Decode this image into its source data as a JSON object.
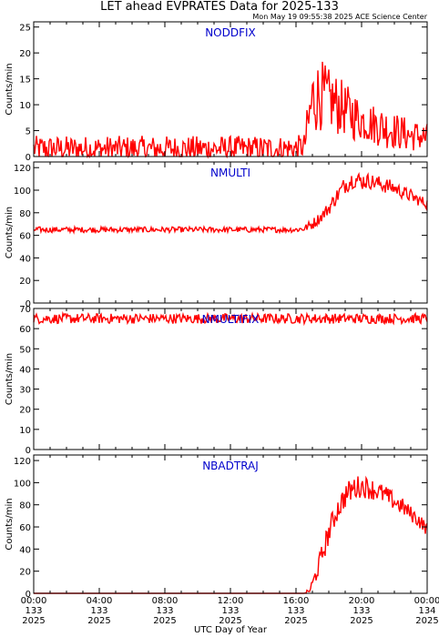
{
  "header": {
    "title": "LET ahead EVPRATES Data for 2025-133",
    "timestamp": "Mon May 19 09:55:38 2025 ACE Science Center"
  },
  "xaxis": {
    "label": "UTC Day of Year",
    "range_hours": [
      0,
      24
    ],
    "ticks": [
      {
        "hour": 0,
        "time": "00:00",
        "doy": "133",
        "year": "2025"
      },
      {
        "hour": 4,
        "time": "04:00",
        "doy": "133",
        "year": "2025"
      },
      {
        "hour": 8,
        "time": "08:00",
        "doy": "133",
        "year": "2025"
      },
      {
        "hour": 12,
        "time": "12:00",
        "doy": "133",
        "year": "2025"
      },
      {
        "hour": 16,
        "time": "16:00",
        "doy": "133",
        "year": "2025"
      },
      {
        "hour": 20,
        "time": "20:00",
        "doy": "133",
        "year": "2025"
      },
      {
        "hour": 24,
        "time": "00:00",
        "doy": "134",
        "year": "2025"
      }
    ]
  },
  "colors": {
    "series": "#ff0000",
    "panel_label": "#0000cc",
    "axes": "#000000"
  },
  "chart_data": [
    {
      "type": "line",
      "name": "NODDFIX",
      "ylabel": "Counts/min",
      "ylim": [
        0,
        26
      ],
      "yticks": [
        0,
        5,
        10,
        15,
        20,
        25
      ],
      "x": [
        0,
        1,
        2,
        3,
        4,
        5,
        6,
        7,
        8,
        9,
        10,
        11,
        12,
        13,
        14,
        15,
        16,
        16.5,
        16.8,
        17,
        17.5,
        18,
        18.5,
        19,
        19.5,
        20,
        20.5,
        21,
        21.5,
        22,
        22.5,
        23,
        23.5,
        24
      ],
      "y": [
        1.5,
        1.5,
        1.5,
        1.5,
        1.5,
        1.5,
        1.5,
        1.5,
        1.5,
        1.5,
        1.5,
        1.5,
        1.5,
        1.5,
        1.5,
        1.5,
        1.5,
        2,
        7,
        11,
        12,
        11,
        10,
        9,
        8,
        7,
        6.5,
        6,
        5.5,
        5,
        4.5,
        4,
        4,
        3.5
      ],
      "noise": [
        2.5,
        2.5,
        2.5,
        2.5,
        2.5,
        2.5,
        2.5,
        2.5,
        2.5,
        2.5,
        2.5,
        2.5,
        2.5,
        2.5,
        2.5,
        2.5,
        2.5,
        2.5,
        6,
        7,
        7,
        6,
        6,
        5,
        5,
        4,
        4,
        4,
        4,
        3.5,
        3.5,
        3,
        3,
        3
      ]
    },
    {
      "type": "line",
      "name": "NMULTI",
      "ylabel": "Counts/min",
      "ylim": [
        0,
        125
      ],
      "yticks": [
        0,
        20,
        40,
        60,
        80,
        100,
        120
      ],
      "x": [
        0,
        2,
        4,
        6,
        8,
        10,
        12,
        14,
        16,
        16.5,
        17,
        17.5,
        18,
        18.5,
        19,
        19.5,
        20,
        20.5,
        21,
        21.5,
        22,
        22.5,
        23,
        23.5,
        24
      ],
      "y": [
        65,
        65,
        65,
        65,
        65,
        65,
        65,
        65,
        65,
        66,
        70,
        76,
        84,
        95,
        105,
        110,
        108,
        108,
        106,
        104,
        102,
        98,
        95,
        91,
        88
      ],
      "noise": [
        2.5,
        2.5,
        2.5,
        2.5,
        2.5,
        2.5,
        2.5,
        2.5,
        2.5,
        3,
        5,
        5,
        6,
        7,
        8,
        8,
        8,
        7,
        7,
        7,
        6,
        6,
        6,
        5,
        5
      ]
    },
    {
      "type": "line",
      "name": "NMULTIFIX",
      "ylabel": "Counts/min",
      "ylim": [
        0,
        70
      ],
      "yticks": [
        0,
        10,
        20,
        30,
        40,
        50,
        60,
        70
      ],
      "x": [
        0,
        4,
        8,
        12,
        16,
        20,
        24
      ],
      "y": [
        65,
        65,
        65,
        65,
        65,
        65,
        65
      ],
      "noise": [
        2.5,
        2.5,
        2.5,
        2.5,
        2.5,
        2.5,
        2.5
      ]
    },
    {
      "type": "line",
      "name": "NBADTRAJ",
      "ylabel": "Counts/min",
      "ylim": [
        0,
        125
      ],
      "yticks": [
        0,
        20,
        40,
        60,
        80,
        100,
        120
      ],
      "x": [
        0,
        2,
        4,
        6,
        8,
        10,
        12,
        14,
        16,
        16.5,
        16.8,
        17,
        17.5,
        18,
        18.5,
        19,
        19.5,
        20,
        20.5,
        21,
        21.5,
        22,
        22.5,
        23,
        23.5,
        24
      ],
      "y": [
        0,
        0,
        0,
        0,
        0,
        0,
        0,
        0,
        0,
        0,
        2,
        8,
        30,
        55,
        75,
        88,
        95,
        97,
        95,
        92,
        88,
        83,
        78,
        72,
        66,
        58
      ],
      "noise": [
        0,
        0,
        0,
        0,
        0,
        0,
        0,
        0,
        0,
        0,
        3,
        6,
        10,
        11,
        11,
        11,
        11,
        10,
        10,
        9,
        9,
        8,
        8,
        7,
        7,
        6
      ]
    }
  ]
}
